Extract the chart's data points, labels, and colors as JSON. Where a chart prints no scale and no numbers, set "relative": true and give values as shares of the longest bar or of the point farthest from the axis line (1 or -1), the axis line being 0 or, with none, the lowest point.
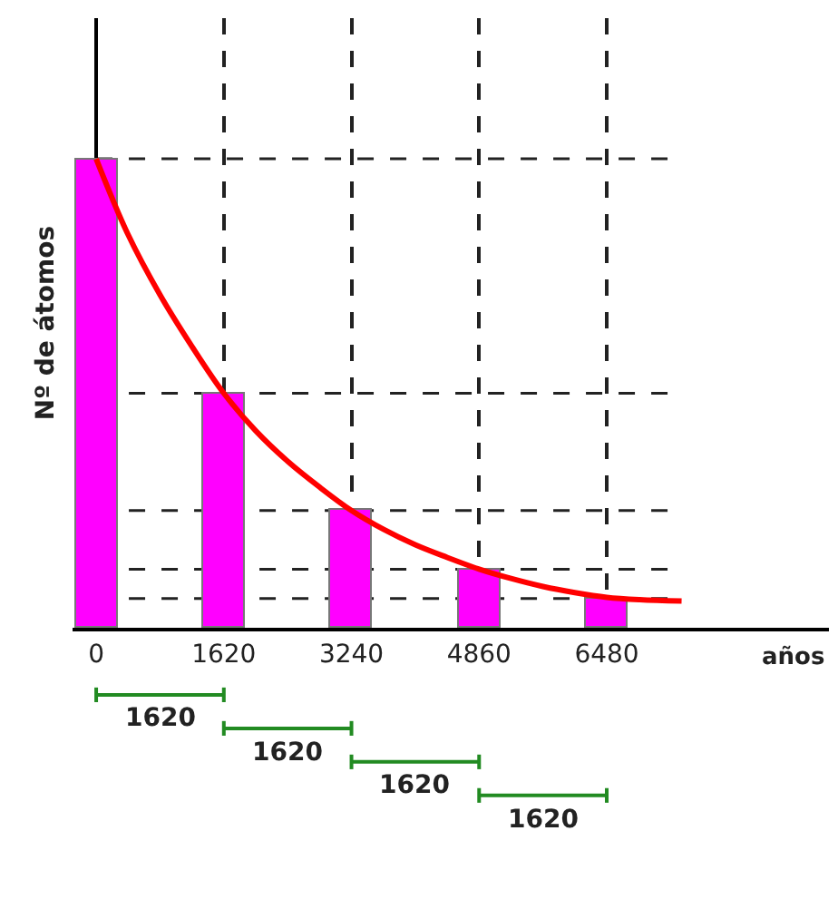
{
  "chart_data": {
    "type": "bar",
    "relative": true,
    "xlabel": "años",
    "ylabel": "Nº de átomos",
    "x": [
      0,
      1620,
      3240,
      4860,
      6480
    ],
    "xlim": [
      -300,
      9300
    ],
    "xticks": [
      0,
      1620,
      3240,
      4860,
      6480
    ],
    "grid": "x",
    "series": [
      {
        "color": "#ff00ff",
        "values": [
          1,
          0.5,
          0.25,
          0.125,
          0.0625
        ]
      },
      {
        "type": "line",
        "color": "#ff0000",
        "x": [
          0,
          400,
          810,
          1215,
          1620,
          2025,
          2430,
          2835,
          3240,
          3645,
          4050,
          4455,
          4860,
          5265,
          5670,
          6075,
          6480,
          6900,
          7430
        ],
        "values": [
          1,
          0.84,
          0.71,
          0.6,
          0.5,
          0.42,
          0.355,
          0.3,
          0.25,
          0.21,
          0.177,
          0.15,
          0.125,
          0.105,
          0.088,
          0.075,
          0.065,
          0.06,
          0.057
        ]
      }
    ],
    "ref_lines": [
      {
        "axis": "y",
        "value": 1,
        "line_style": "dashed"
      },
      {
        "axis": "y",
        "value": 0.5,
        "line_style": "dashed"
      },
      {
        "axis": "y",
        "value": 0.25,
        "line_style": "dashed"
      },
      {
        "axis": "y",
        "value": 0.125,
        "line_style": "dashed"
      },
      {
        "axis": "y",
        "value": 0.0625,
        "line_style": "dashed"
      }
    ],
    "annotations": [
      "1620",
      "1620",
      "1620",
      "1620"
    ]
  }
}
